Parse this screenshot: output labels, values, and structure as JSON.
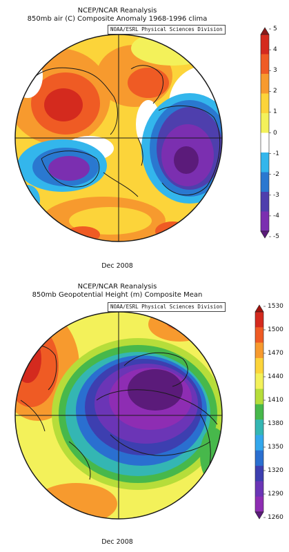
{
  "maps": [
    {
      "title_line1": "NCEP/NCAR Reanalysis",
      "title_line2": "850mb air (C) Composite Anomaly 1968-1996 clima",
      "credit": "NOAA/ESRL Physical Sciences Division",
      "date_label": "Dec 2008",
      "colorbar": {
        "ticks": [
          "5",
          "4",
          "3",
          "2",
          "1",
          "0",
          "-1",
          "-2",
          "-3",
          "-4",
          "-5"
        ],
        "colors": [
          "#8b1a1a",
          "#d42a1e",
          "#ef5b24",
          "#f79a2e",
          "#fcd43a",
          "#f3f15a",
          "#ffffff",
          "#33b6ec",
          "#2a78d0",
          "#4e3fad",
          "#7b2fb0",
          "#5b1b7a"
        ]
      }
    },
    {
      "title_line1": "NCEP/NCAR Reanalysis",
      "title_line2": "850mb Geopotential Height (m) Composite Mean",
      "credit": "NOAA/ESRL Physical Sciences Division",
      "date_label": "Dec 2008",
      "colorbar": {
        "ticks": [
          "1530",
          "1500",
          "1470",
          "1440",
          "1410",
          "1380",
          "1350",
          "1320",
          "1290",
          "1260"
        ],
        "colors": [
          "#a0140e",
          "#d42a1e",
          "#ef5b24",
          "#f79a2e",
          "#fcd43a",
          "#f3f15a",
          "#b6dd3a",
          "#47b84b",
          "#34b6b3",
          "#33a7ec",
          "#2a6fd0",
          "#3d3fb0",
          "#6b35b6",
          "#8e2db3",
          "#5b1b7a"
        ]
      }
    }
  ]
}
